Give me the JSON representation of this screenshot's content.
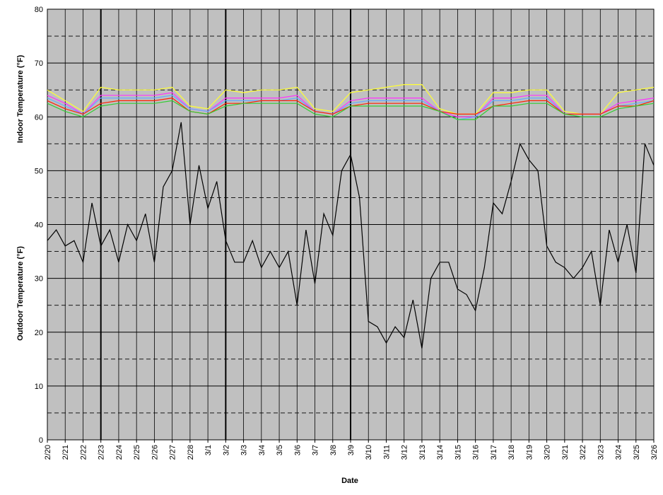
{
  "chart_data": {
    "type": "line",
    "ylabel_indoor": "Indoor Temperature (°F)",
    "ylabel_outdoor": "Outdoor Temperature (°F)",
    "xlabel": "Date",
    "xlim": [
      0,
      34
    ],
    "xticks": [
      {
        "value": 0,
        "label": "2/20"
      },
      {
        "value": 1,
        "label": "2/21"
      },
      {
        "value": 2,
        "label": "2/22"
      },
      {
        "value": 3,
        "label": "2/23"
      },
      {
        "value": 4,
        "label": "2/24"
      },
      {
        "value": 5,
        "label": "2/25"
      },
      {
        "value": 6,
        "label": "2/26"
      },
      {
        "value": 7,
        "label": "2/27"
      },
      {
        "value": 8,
        "label": "2/28"
      },
      {
        "value": 9,
        "label": "3/1"
      },
      {
        "value": 10,
        "label": "3/2"
      },
      {
        "value": 11,
        "label": "3/3"
      },
      {
        "value": 12,
        "label": "3/4"
      },
      {
        "value": 13,
        "label": "3/5"
      },
      {
        "value": 14,
        "label": "3/6"
      },
      {
        "value": 15,
        "label": "3/7"
      },
      {
        "value": 16,
        "label": "3/8"
      },
      {
        "value": 17,
        "label": "3/9"
      },
      {
        "value": 18,
        "label": "3/10"
      },
      {
        "value": 19,
        "label": "3/11"
      },
      {
        "value": 20,
        "label": "3/12"
      },
      {
        "value": 21,
        "label": "3/13"
      },
      {
        "value": 22,
        "label": "3/14"
      },
      {
        "value": 23,
        "label": "3/15"
      },
      {
        "value": 24,
        "label": "3/16"
      },
      {
        "value": 25,
        "label": "3/17"
      },
      {
        "value": 26,
        "label": "3/18"
      },
      {
        "value": 27,
        "label": "3/19"
      },
      {
        "value": 28,
        "label": "3/20"
      },
      {
        "value": 29,
        "label": "3/21"
      },
      {
        "value": 30,
        "label": "3/22"
      },
      {
        "value": 31,
        "label": "3/23"
      },
      {
        "value": 32,
        "label": "3/24"
      },
      {
        "value": 33,
        "label": "3/25"
      },
      {
        "value": 34,
        "label": "3/26"
      }
    ],
    "thick_xlines": [
      3,
      10,
      17
    ],
    "ylim": [
      0,
      80
    ],
    "yticks": [
      0,
      10,
      20,
      30,
      40,
      50,
      60,
      70,
      80
    ],
    "yminorticks": [
      5,
      15,
      25,
      35,
      45,
      55,
      65,
      75
    ],
    "grid": true,
    "background": "#c0c0c0",
    "series": [
      {
        "color": "#ffff33",
        "x": [
          0,
          1,
          2,
          3,
          4,
          5,
          6,
          7,
          8,
          9,
          10,
          11,
          12,
          13,
          14,
          15,
          16,
          17,
          18,
          19,
          20,
          21,
          22,
          23,
          24,
          25,
          26,
          27,
          28,
          29,
          30,
          31,
          32,
          33,
          34
        ],
        "values": [
          65,
          63,
          61,
          65.5,
          65,
          65,
          65,
          65.5,
          62,
          61.5,
          65,
          64.5,
          65,
          65,
          65.5,
          61.5,
          61,
          64.5,
          65,
          65.5,
          66,
          66,
          61.5,
          60.5,
          60.5,
          64.5,
          64.5,
          65,
          65,
          61,
          60.5,
          60.5,
          64.5,
          65,
          65.5
        ]
      },
      {
        "color": "#ff33ff",
        "x": [
          0,
          1,
          2,
          3,
          4,
          5,
          6,
          7,
          8,
          9,
          10,
          11,
          12,
          13,
          14,
          15,
          16,
          17,
          18,
          19,
          20,
          21,
          22,
          23,
          24,
          25,
          26,
          27,
          28,
          29,
          30,
          31,
          32,
          33,
          34
        ],
        "values": [
          64,
          62.5,
          60.5,
          64,
          64,
          64,
          64,
          64.5,
          61.5,
          61,
          63.5,
          63.5,
          63.5,
          63.5,
          64,
          61,
          60.5,
          63,
          63.5,
          63.5,
          63.5,
          63.5,
          61,
          60,
          60,
          63.5,
          63.5,
          64,
          64,
          60.5,
          60.5,
          60.5,
          62.5,
          63,
          63.5
        ]
      },
      {
        "color": "#66aaff",
        "x": [
          0,
          1,
          2,
          3,
          4,
          5,
          6,
          7,
          8,
          9,
          10,
          11,
          12,
          13,
          14,
          15,
          16,
          17,
          18,
          19,
          20,
          21,
          22,
          23,
          24,
          25,
          26,
          27,
          28,
          29,
          30,
          31,
          32,
          33,
          34
        ],
        "values": [
          63.5,
          62,
          60.5,
          63.5,
          63.5,
          63.5,
          63.5,
          64,
          61.5,
          61,
          63,
          63,
          63,
          63,
          63.5,
          61,
          60.5,
          62.5,
          63,
          63,
          63,
          63,
          61,
          59.5,
          60,
          63,
          63,
          63.5,
          63.5,
          60.5,
          60.5,
          60.5,
          62,
          62.5,
          63
        ]
      },
      {
        "color": "#ff2200",
        "x": [
          0,
          1,
          2,
          3,
          4,
          5,
          6,
          7,
          8,
          9,
          10,
          11,
          12,
          13,
          14,
          15,
          16,
          17,
          18,
          19,
          20,
          21,
          22,
          23,
          24,
          25,
          26,
          27,
          28,
          29,
          30,
          31,
          32,
          33,
          34
        ],
        "values": [
          63,
          61.5,
          60.5,
          62.5,
          63,
          63,
          63,
          63.5,
          61,
          60.5,
          62.5,
          62.5,
          63,
          63,
          63,
          61,
          60.5,
          62,
          62.5,
          62.5,
          62.5,
          62.5,
          61,
          60.5,
          60.5,
          62,
          62.5,
          63,
          63,
          60.5,
          60.5,
          60.5,
          62,
          62,
          63
        ]
      },
      {
        "color": "#33cc33",
        "x": [
          0,
          1,
          2,
          3,
          4,
          5,
          6,
          7,
          8,
          9,
          10,
          11,
          12,
          13,
          14,
          15,
          16,
          17,
          18,
          19,
          20,
          21,
          22,
          23,
          24,
          25,
          26,
          27,
          28,
          29,
          30,
          31,
          32,
          33,
          34
        ],
        "values": [
          62.5,
          61,
          60,
          62,
          62.5,
          62.5,
          62.5,
          63,
          61,
          60.5,
          62,
          62.5,
          62.5,
          62.5,
          62.5,
          60.5,
          60,
          62,
          62,
          62,
          62,
          62,
          61,
          59.5,
          59.5,
          62,
          62,
          62.5,
          62.5,
          60.5,
          60,
          60,
          61.5,
          62,
          62.5
        ]
      },
      {
        "color": "#000000",
        "x": [
          0,
          0.5,
          1,
          1.5,
          2,
          2.5,
          3,
          3.5,
          4,
          4.5,
          5,
          5.5,
          6,
          6.5,
          7,
          7.5,
          8,
          8.5,
          9,
          9.5,
          10,
          10.5,
          11,
          11.5,
          12,
          12.5,
          13,
          13.5,
          14,
          14.5,
          15,
          15.5,
          16,
          16.5,
          17,
          17.5,
          18,
          18.5,
          19,
          19.5,
          20,
          20.5,
          21,
          21.5,
          22,
          22.5,
          23,
          23.5,
          24,
          24.5,
          25,
          25.5,
          26,
          26.5,
          27,
          27.5,
          28,
          28.5,
          29,
          29.5,
          30,
          30.5,
          31,
          31.5,
          32,
          32.5,
          33,
          33.5,
          34
        ],
        "values": [
          37,
          39,
          36,
          37,
          33,
          44,
          36,
          39,
          33,
          40,
          37,
          42,
          33,
          47,
          50,
          59,
          40,
          51,
          43,
          48,
          37,
          33,
          33,
          37,
          32,
          35,
          32,
          35,
          25,
          39,
          29,
          42,
          38,
          50,
          53,
          45,
          22,
          21,
          18,
          21,
          19,
          26,
          17,
          30,
          33,
          33,
          28,
          27,
          24,
          32,
          44,
          42,
          48,
          55,
          52,
          50,
          36,
          33,
          32,
          30,
          32,
          35,
          25,
          39,
          33,
          40,
          31,
          55,
          51
        ]
      }
    ]
  }
}
